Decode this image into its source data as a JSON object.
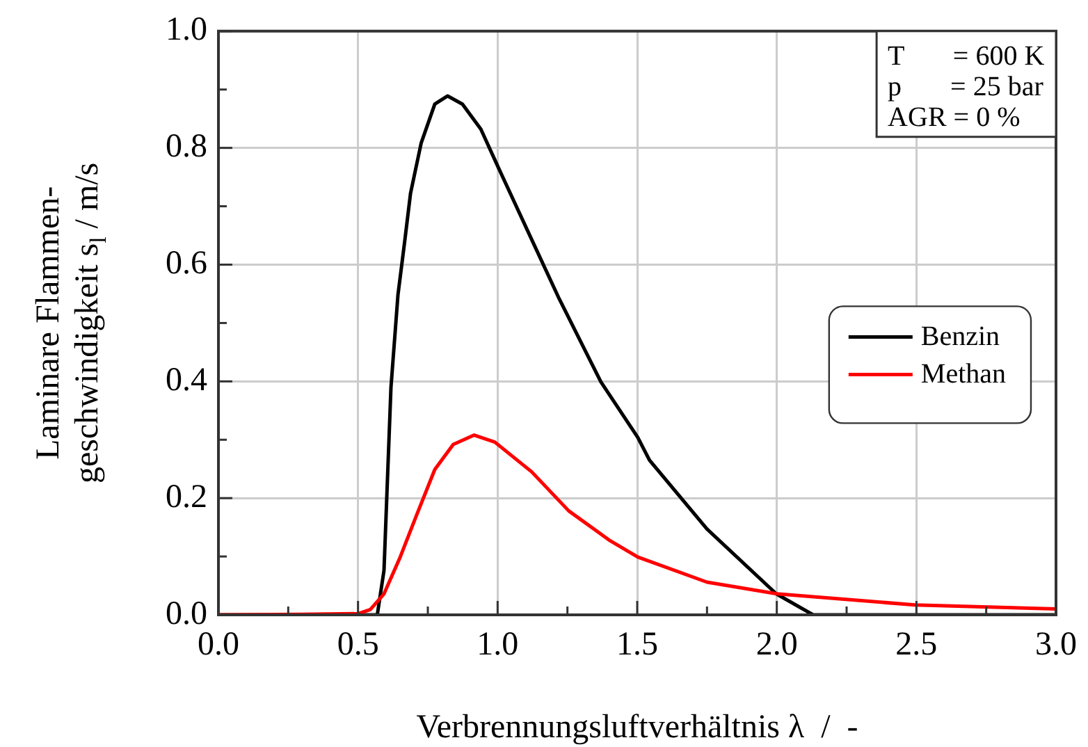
{
  "chart_data": {
    "type": "line",
    "xlabel": "Verbrennungsluftverhältnis λ  /  -",
    "ylabel": "Laminare Flammen-\ngeschwindigkeit s$_{l}$ / m/s",
    "xlim": [
      0,
      3
    ],
    "ylim": [
      0,
      1
    ],
    "xticks": [
      {
        "value": 0,
        "label": "0.0"
      },
      {
        "value": 0.25,
        "label": null
      },
      {
        "value": 0.5,
        "label": "0.5"
      },
      {
        "value": 0.75,
        "label": null
      },
      {
        "value": 1,
        "label": "1.0"
      },
      {
        "value": 1.25,
        "label": null
      },
      {
        "value": 1.5,
        "label": "1.5"
      },
      {
        "value": 1.75,
        "label": null
      },
      {
        "value": 2,
        "label": "2.0"
      },
      {
        "value": 2.25,
        "label": null
      },
      {
        "value": 2.5,
        "label": "2.5"
      },
      {
        "value": 2.75,
        "label": null
      },
      {
        "value": 3,
        "label": "3.0"
      }
    ],
    "yticks": [
      {
        "value": 0,
        "label": "0.0"
      },
      {
        "value": 0.1,
        "label": null
      },
      {
        "value": 0.2,
        "label": "0.2"
      },
      {
        "value": 0.3,
        "label": null
      },
      {
        "value": 0.4,
        "label": "0.4"
      },
      {
        "value": 0.5,
        "label": null
      },
      {
        "value": 0.6,
        "label": "0.6"
      },
      {
        "value": 0.7,
        "label": null
      },
      {
        "value": 0.8,
        "label": "0.8"
      },
      {
        "value": 0.9,
        "label": null
      },
      {
        "value": 1,
        "label": "1.0"
      }
    ],
    "grid": true,
    "legend": "right",
    "marker": "none",
    "line_style": "solid",
    "annotations": [
      "T       = 600 K",
      "p       = 25 bar",
      "AGR = 0 %"
    ],
    "series": [
      {
        "name": "Benzin",
        "color": "#000000",
        "x": [
          0,
          0.3,
          0.569,
          0.593,
          0.618,
          0.643,
          0.668,
          0.688,
          0.726,
          0.775,
          0.821,
          0.874,
          0.94,
          1.0,
          1.122,
          1.221,
          1.37,
          1.502,
          1.544,
          1.75,
          1.998,
          2.13,
          2.5,
          3.0
        ],
        "values": [
          0,
          0,
          0,
          0.076,
          0.39,
          0.548,
          0.643,
          0.722,
          0.808,
          0.875,
          0.889,
          0.875,
          0.832,
          0.769,
          0.643,
          0.541,
          0.399,
          0.304,
          0.265,
          0.147,
          0.036,
          0,
          0,
          0
        ]
      },
      {
        "name": "Methan",
        "color": "#ff0000",
        "x": [
          0,
          0.3,
          0.5,
          0.544,
          0.593,
          0.651,
          0.709,
          0.775,
          0.841,
          0.916,
          0.99,
          1.122,
          1.255,
          1.403,
          1.502,
          1.75,
          2.0,
          2.494,
          3.0
        ],
        "values": [
          0,
          0.001,
          0.002,
          0.009,
          0.036,
          0.099,
          0.17,
          0.249,
          0.292,
          0.308,
          0.296,
          0.245,
          0.178,
          0.127,
          0.099,
          0.056,
          0.036,
          0.017,
          0.01
        ]
      }
    ]
  }
}
